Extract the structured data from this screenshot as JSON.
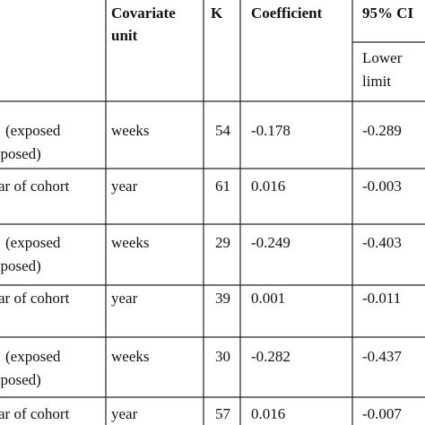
{
  "header": {
    "covariate_unit": [
      "Covariate",
      "unit"
    ],
    "k": "K",
    "coefficient": "Coefficient",
    "ci": "95% CI",
    "lower_limit": [
      "Lower",
      "limit"
    ]
  },
  "rows": [
    {
      "study": [
        "(exposed",
        "xposed)"
      ],
      "unit": "weeks",
      "k": 54,
      "coefficient": -0.178,
      "lower": -0.289
    },
    {
      "study": [
        "ar of cohort"
      ],
      "unit": "year",
      "k": 61,
      "coefficient": 0.016,
      "lower": -0.003
    },
    {
      "study": [
        "(exposed",
        "xposed)"
      ],
      "unit": "weeks",
      "k": 29,
      "coefficient": -0.249,
      "lower": -0.403
    },
    {
      "study": [
        "ar of cohort"
      ],
      "unit": "year",
      "k": 39,
      "coefficient": 0.001,
      "lower": -0.011
    },
    {
      "study": [
        "(exposed",
        "xposed)"
      ],
      "unit": "weeks",
      "k": 30,
      "coefficient": -0.282,
      "lower": -0.437
    },
    {
      "study": [
        "ar of cohort"
      ],
      "unit": "year",
      "k": 57,
      "coefficient": 0.016,
      "lower": -0.007
    }
  ]
}
